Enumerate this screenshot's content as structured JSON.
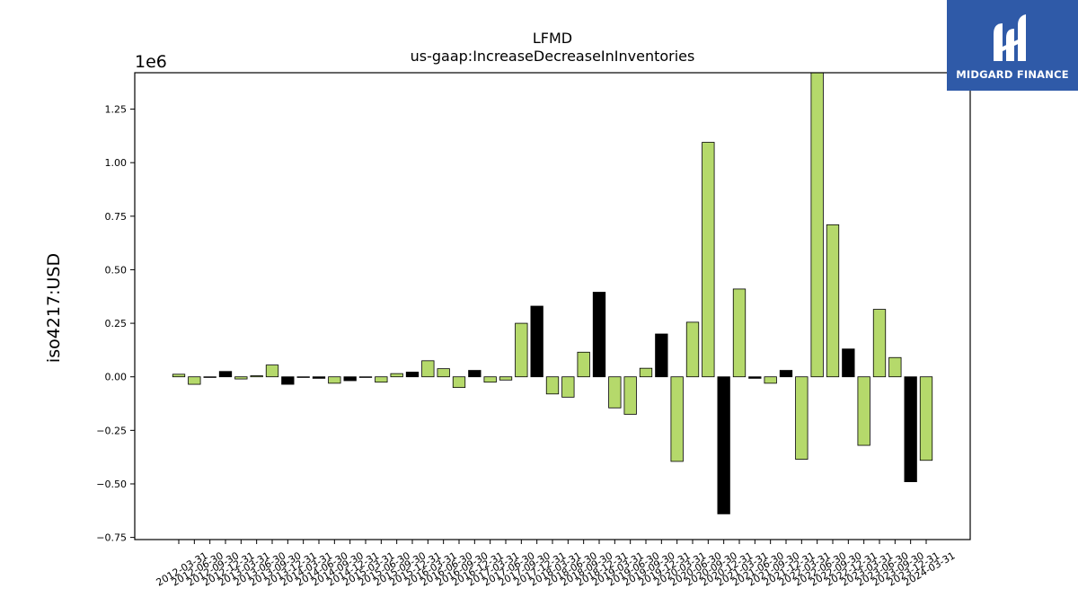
{
  "brand": {
    "name": "MIDGARD FINANCE"
  },
  "chart_data": {
    "type": "bar",
    "title": "LFMD",
    "subtitle": "us-gaap:IncreaseDecreaseInInventories",
    "ylabel": "iso4217:USD",
    "xlabel": "",
    "y_offset_label": "1e6",
    "ylim": [
      -0.76,
      1.42
    ],
    "yticks": [
      "1.25",
      "1.00",
      "0.75",
      "0.50",
      "0.25",
      "0.00",
      "−0.25",
      "−0.50",
      "−0.75"
    ],
    "ytick_values": [
      1.25,
      1.0,
      0.75,
      0.5,
      0.25,
      0.0,
      -0.25,
      -0.5,
      -0.75
    ],
    "categories": [
      "2012-03-31",
      "2012-06-30",
      "2012-09-30",
      "2012-12-31",
      "2013-03-31",
      "2013-06-30",
      "2013-09-30",
      "2013-12-31",
      "2014-03-31",
      "2014-06-30",
      "2014-09-30",
      "2014-12-31",
      "2015-03-31",
      "2015-06-30",
      "2015-09-30",
      "2015-12-31",
      "2016-03-31",
      "2016-06-30",
      "2016-09-30",
      "2016-12-31",
      "2017-03-31",
      "2017-06-30",
      "2017-09-30",
      "2017-12-31",
      "2018-03-31",
      "2018-06-30",
      "2018-09-30",
      "2018-12-31",
      "2019-03-31",
      "2019-06-30",
      "2019-09-30",
      "2019-12-31",
      "2020-03-31",
      "2020-06-30",
      "2020-09-30",
      "2020-12-31",
      "2021-03-31",
      "2021-06-30",
      "2021-09-30",
      "2021-12-31",
      "2022-03-31",
      "2022-06-30",
      "2022-09-30",
      "2022-12-31",
      "2023-03-31",
      "2023-06-30",
      "2023-09-30",
      "2023-12-31",
      "2024-03-31"
    ],
    "values": [
      0.012,
      -0.035,
      -0.003,
      0.025,
      -0.01,
      0.005,
      0.055,
      -0.035,
      -0.003,
      -0.007,
      -0.03,
      -0.018,
      -0.003,
      -0.025,
      0.015,
      0.022,
      0.075,
      0.038,
      -0.05,
      0.03,
      -0.025,
      -0.015,
      0.25,
      0.33,
      -0.08,
      -0.095,
      0.115,
      0.395,
      -0.145,
      -0.175,
      0.04,
      0.2,
      -0.395,
      0.255,
      1.095,
      -0.64,
      0.41,
      -0.007,
      -0.03,
      0.03,
      -0.385,
      1.42,
      0.71,
      0.13,
      -0.32,
      0.315,
      0.09,
      -0.49,
      -0.39
    ],
    "bar_colors": [
      "#b5d96b",
      "#b5d96b",
      "#b5d96b",
      "#000000",
      "#b5d96b",
      "#b5d96b",
      "#b5d96b",
      "#000000",
      "#b5d96b",
      "#000000",
      "#b5d96b",
      "#000000",
      "#b5d96b",
      "#b5d96b",
      "#b5d96b",
      "#000000",
      "#b5d96b",
      "#b5d96b",
      "#b5d96b",
      "#000000",
      "#b5d96b",
      "#b5d96b",
      "#b5d96b",
      "#000000",
      "#b5d96b",
      "#b5d96b",
      "#b5d96b",
      "#000000",
      "#b5d96b",
      "#b5d96b",
      "#b5d96b",
      "#000000",
      "#b5d96b",
      "#b5d96b",
      "#b5d96b",
      "#000000",
      "#b5d96b",
      "#000000",
      "#b5d96b",
      "#000000",
      "#b5d96b",
      "#b5d96b",
      "#b5d96b",
      "#000000",
      "#b5d96b",
      "#b5d96b",
      "#b5d96b",
      "#000000",
      "#b5d96b"
    ],
    "grid": false,
    "legend": "none"
  }
}
